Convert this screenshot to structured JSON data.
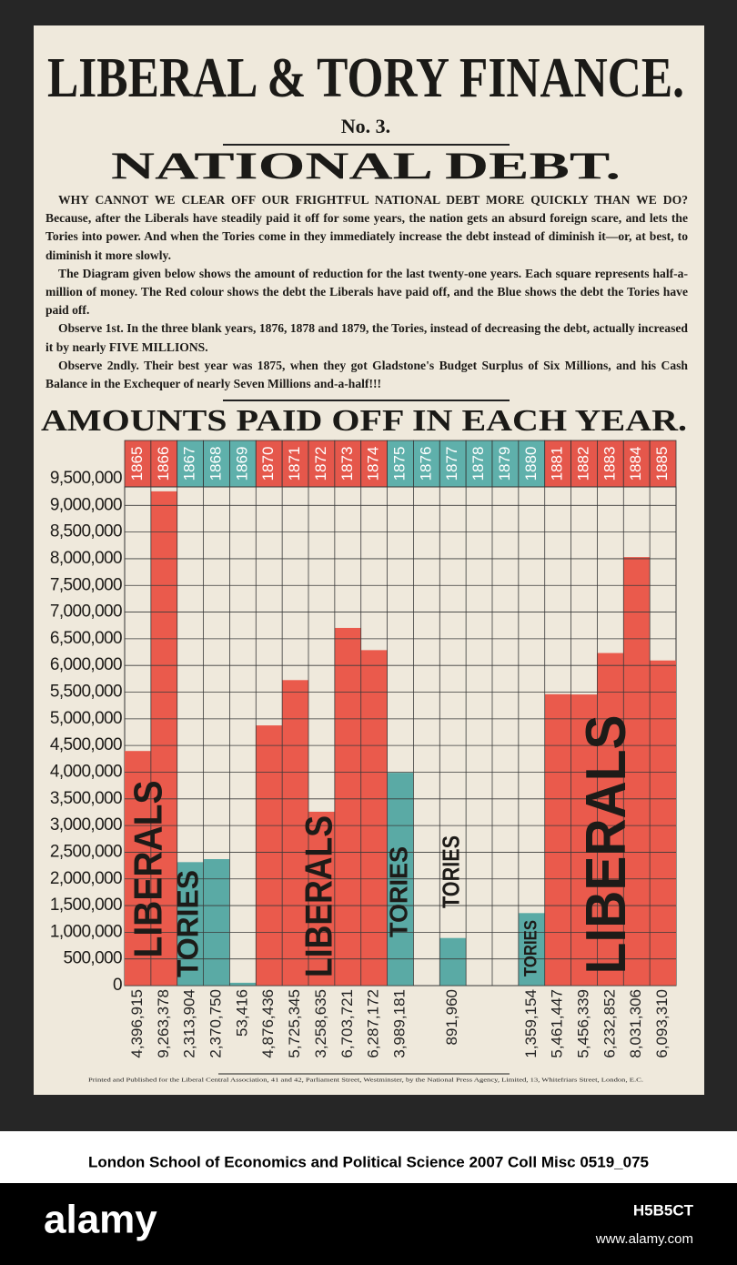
{
  "poster": {
    "title": "LIBERAL & TORY FINANCE.",
    "number": "No. 3.",
    "heading": "NATIONAL DEBT.",
    "paragraphs": [
      "WHY CANNOT WE CLEAR OFF OUR FRIGHTFUL NATIONAL DEBT MORE QUICKLY THAN WE DO? Because, after the Liberals have steadily paid it off for some years, the nation gets an absurd foreign scare, and lets the Tories into power. And when the Tories come in they immediately increase the debt instead of diminish it—or, at best, to diminish it more slowly.",
      "The Diagram given below shows the amount of reduction for the last twenty-one years. Each square represents half-a-million of money. The Red colour shows the debt the Liberals have paid off, and the Blue shows the debt the Tories have paid off.",
      "Observe 1st. In the three blank years, 1876, 1878 and 1879, the Tories, instead of decreasing the debt, actually increased it by nearly FIVE MILLIONS.",
      "Observe 2ndly. Their best year was 1875, when they got Gladstone's Budget Surplus of Six Millions, and his Cash Balance in the Exchequer of nearly Seven Millions and-a-half!!!"
    ],
    "footer": "Printed and Published for the Liberal Central Association, 41 and 42, Parliament Street, Westminster, by the National Press Agency, Limited, 13, Whitefriars Street, London, E.C."
  },
  "caption": "London School of Economics and Political Science 2007 Coll Misc 0519_075",
  "watermark": {
    "brand": "alamy",
    "id": "H5B5CT",
    "url": "www.alamy.com"
  },
  "chart_data": {
    "type": "bar",
    "title": "AMOUNTS PAID OFF IN EACH YEAR.",
    "categories": [
      "1865",
      "1866",
      "1867",
      "1868",
      "1869",
      "1870",
      "1871",
      "1872",
      "1873",
      "1874",
      "1875",
      "1876",
      "1877",
      "1878",
      "1879",
      "1880",
      "1881",
      "1882",
      "1883",
      "1884",
      "1885"
    ],
    "category_colors": [
      "#e5574b",
      "#e5574b",
      "#5fb0ab",
      "#5fb0ab",
      "#5fb0ab",
      "#e5574b",
      "#e5574b",
      "#e5574b",
      "#e5574b",
      "#e5574b",
      "#5fb0ab",
      "#5fb0ab",
      "#5fb0ab",
      "#5fb0ab",
      "#5fb0ab",
      "#5fb0ab",
      "#e5574b",
      "#e5574b",
      "#e5574b",
      "#e5574b",
      "#e5574b"
    ],
    "series": [
      {
        "name": "LIBERALS",
        "color": "#ea5a4c",
        "values": [
          4396915,
          9263378,
          null,
          null,
          null,
          4876436,
          5725345,
          3258635,
          6703721,
          6287172,
          null,
          null,
          null,
          null,
          null,
          null,
          5461447,
          5456339,
          6232852,
          8031306,
          6093310
        ],
        "value_labels": [
          "4,396,915",
          "9,263,378",
          null,
          null,
          null,
          "4,876,436",
          "5,725,345",
          "3,258,635",
          "6,703,721",
          "6,287,172",
          null,
          null,
          null,
          null,
          null,
          null,
          "5,461,447",
          "5,456,339",
          "6,232,852",
          "8,031,306",
          "6,093,310"
        ]
      },
      {
        "name": "TORIES",
        "color": "#5aaaa5",
        "values": [
          null,
          null,
          2313904,
          2370750,
          53416,
          null,
          null,
          null,
          null,
          null,
          3989181,
          null,
          891960,
          null,
          null,
          1359154,
          null,
          null,
          null,
          null,
          null
        ],
        "value_labels": [
          null,
          null,
          "2,313,904",
          "2,370,750",
          "53,416",
          null,
          null,
          null,
          null,
          null,
          "3,989,181",
          null,
          "891,960",
          null,
          null,
          "1,359,154",
          null,
          null,
          null,
          null,
          null
        ]
      }
    ],
    "ylim": [
      0,
      9500000
    ],
    "yticks": [
      0,
      {
        "value": 500000,
        "label": "500,000"
      },
      {
        "value": 1000000,
        "label": "1,000,000"
      },
      {
        "value": 1500000,
        "label": "1,500,000"
      },
      {
        "value": 2000000,
        "label": "2,000,000"
      },
      {
        "value": 2500000,
        "label": "2,500,000"
      },
      {
        "value": 3000000,
        "label": "3,000,000"
      },
      {
        "value": 3500000,
        "label": "3,500,000"
      },
      {
        "value": 4000000,
        "label": "4,000,000"
      },
      {
        "value": 4500000,
        "label": "4,500,000"
      },
      {
        "value": 5000000,
        "label": "5,000,000"
      },
      {
        "value": 5500000,
        "label": "5,500,000"
      },
      {
        "value": 6000000,
        "label": "6,000,000"
      },
      {
        "value": 6500000,
        "label": "6,500,000"
      },
      {
        "value": 7000000,
        "label": "7,000,000"
      },
      {
        "value": 7500000,
        "label": "7,500,000"
      },
      {
        "value": 8000000,
        "label": "8,000,000"
      },
      {
        "value": 8500000,
        "label": "8,500,000"
      },
      {
        "value": 9000000,
        "label": "9,000,000"
      },
      {
        "value": 9500000,
        "label": "9,500,000"
      }
    ],
    "grid": true
  }
}
